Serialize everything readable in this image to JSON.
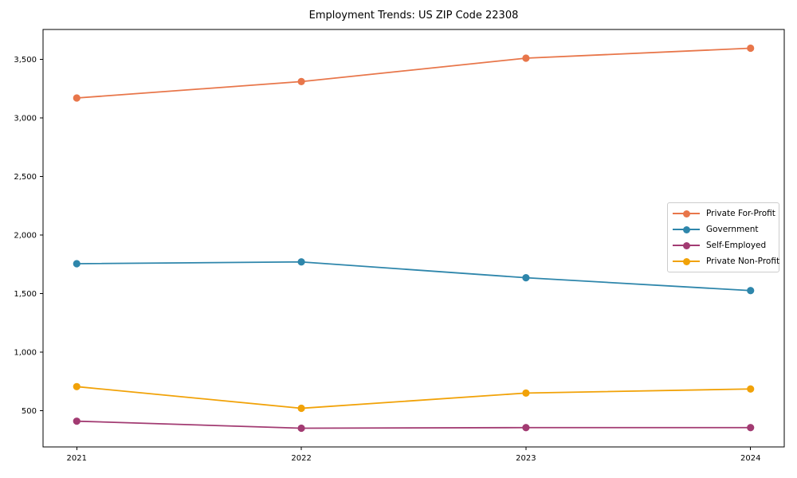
{
  "title": "Employment Trends: US ZIP Code 22308",
  "chart_data": {
    "type": "line",
    "title": "Employment Trends: US ZIP Code 22308",
    "xlabel": "",
    "ylabel": "",
    "x": [
      2021,
      2022,
      2023,
      2024
    ],
    "x_tick_labels": [
      "2021",
      "2022",
      "2023",
      "2024"
    ],
    "y_ticks": [
      500,
      1000,
      1500,
      2000,
      2500,
      3000,
      3500
    ],
    "y_tick_labels": [
      "500",
      "1,000",
      "1,500",
      "2,000",
      "2,500",
      "3,000",
      "3,500"
    ],
    "xlim": [
      2020.85,
      2024.15
    ],
    "ylim": [
      190,
      3755
    ],
    "grid": false,
    "legend_position": "center-right",
    "series": [
      {
        "name": "Private For-Profit",
        "color": "#E8764A",
        "values": [
          3170,
          3310,
          3510,
          3595
        ]
      },
      {
        "name": "Government",
        "color": "#2E86AB",
        "values": [
          1755,
          1770,
          1635,
          1525
        ]
      },
      {
        "name": "Self-Employed",
        "color": "#A23B72",
        "values": [
          410,
          350,
          355,
          355
        ]
      },
      {
        "name": "Private Non-Profit",
        "color": "#F1A208",
        "values": [
          705,
          520,
          650,
          685
        ]
      }
    ],
    "marker": "circle",
    "marker_radius": 4.6,
    "line_width": 1.8
  }
}
